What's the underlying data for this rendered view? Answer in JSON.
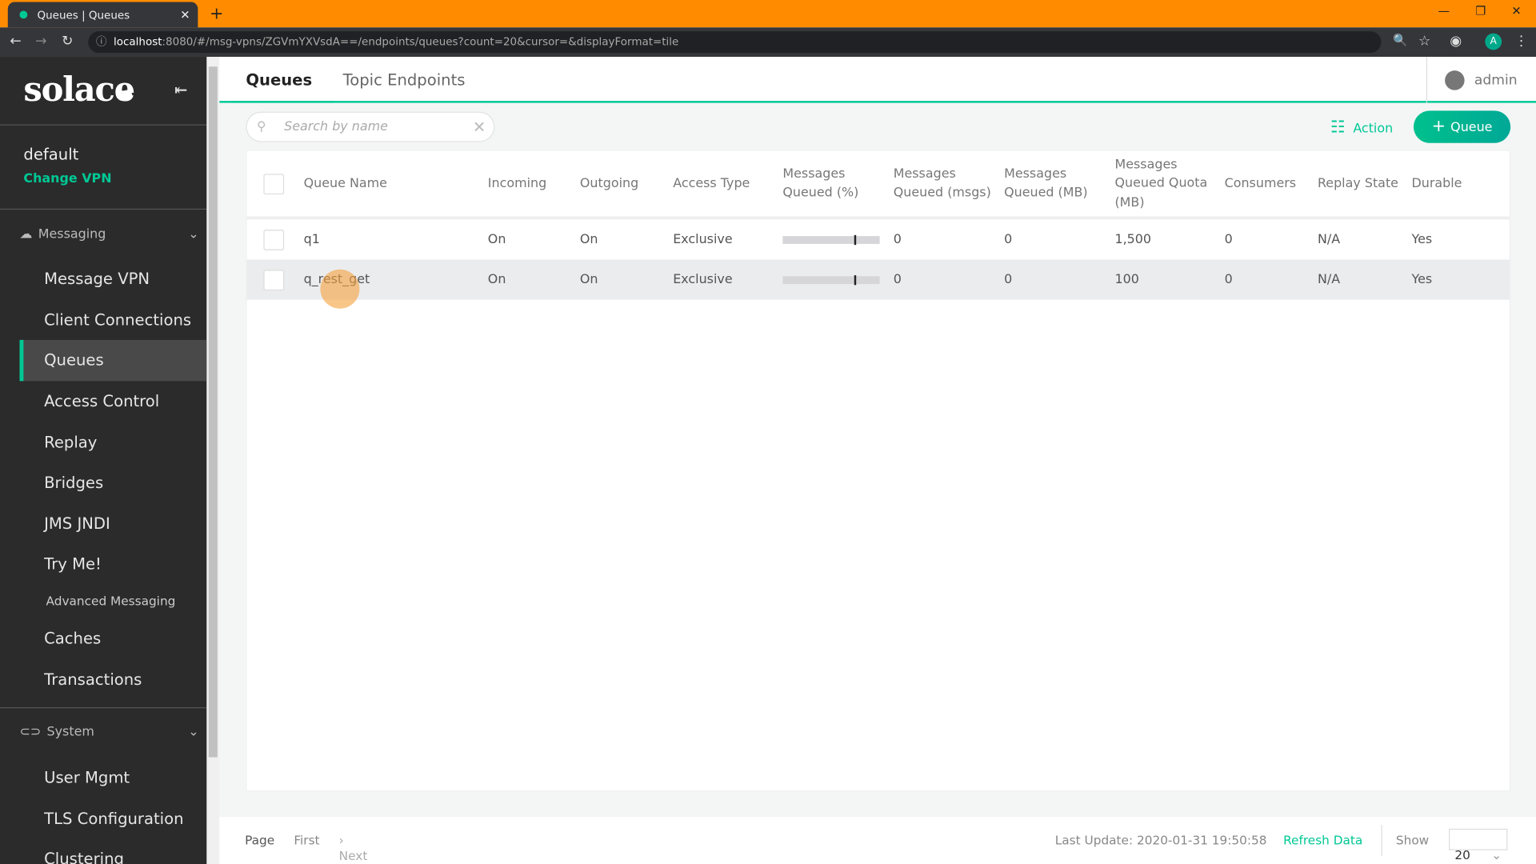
{
  "browser": {
    "tab_title": "Queues | Queues",
    "url_host": "localhost",
    "url_rest": ":8080/#/msg-vpns/ZGVmYXVsdA==/endpoints/queues?count=20&cursor=&displayFormat=tile",
    "profile_initial": "A"
  },
  "sidebar": {
    "logo": "solace",
    "vpn_name": "default",
    "change_vpn": "Change VPN",
    "messaging_label": "Messaging",
    "messaging_items": [
      {
        "label": "Message VPN"
      },
      {
        "label": "Client Connections"
      },
      {
        "label": "Queues",
        "active": true
      },
      {
        "label": "Access Control"
      },
      {
        "label": "Replay"
      },
      {
        "label": "Bridges"
      },
      {
        "label": "JMS JNDI"
      },
      {
        "label": "Try Me!"
      },
      {
        "label": "Advanced Messaging"
      },
      {
        "label": "Caches"
      },
      {
        "label": "Transactions"
      }
    ],
    "system_label": "System",
    "system_items": [
      {
        "label": "User Mgmt"
      },
      {
        "label": "TLS Configuration"
      },
      {
        "label": "Clustering"
      }
    ]
  },
  "header": {
    "tabs": [
      "Queues",
      "Topic Endpoints"
    ],
    "user": "admin"
  },
  "toolbar": {
    "search_placeholder": "Search by name",
    "action_label": "Action",
    "add_queue_label": "Queue"
  },
  "table": {
    "columns": [
      "Queue Name",
      "Incoming",
      "Outgoing",
      "Access Type",
      "Messages Queued (%)",
      "Messages Queued (msgs)",
      "Messages Queued (MB)",
      "Messages Queued Quota (MB)",
      "Consumers",
      "Replay State",
      "Durable"
    ],
    "rows": [
      {
        "name": "q1",
        "incoming": "On",
        "outgoing": "On",
        "access": "Exclusive",
        "pct": 0,
        "msgs": "0",
        "mb": "0",
        "quota": "1,500",
        "consumers": "0",
        "replay": "N/A",
        "durable": "Yes"
      },
      {
        "name": "q_rest_get",
        "incoming": "On",
        "outgoing": "On",
        "access": "Exclusive",
        "pct": 0,
        "msgs": "0",
        "mb": "0",
        "quota": "100",
        "consumers": "0",
        "replay": "N/A",
        "durable": "Yes"
      }
    ]
  },
  "footer": {
    "page": "Page",
    "first": "First",
    "next": "Next",
    "last_update": "Last Update: 2020-01-31 19:50:58",
    "refresh": "Refresh Data",
    "show": "Show",
    "page_size": "20"
  },
  "colors": {
    "accent": "#00c895",
    "browser_frame": "#ff8c00",
    "sidebar": "#2b2b2b"
  }
}
